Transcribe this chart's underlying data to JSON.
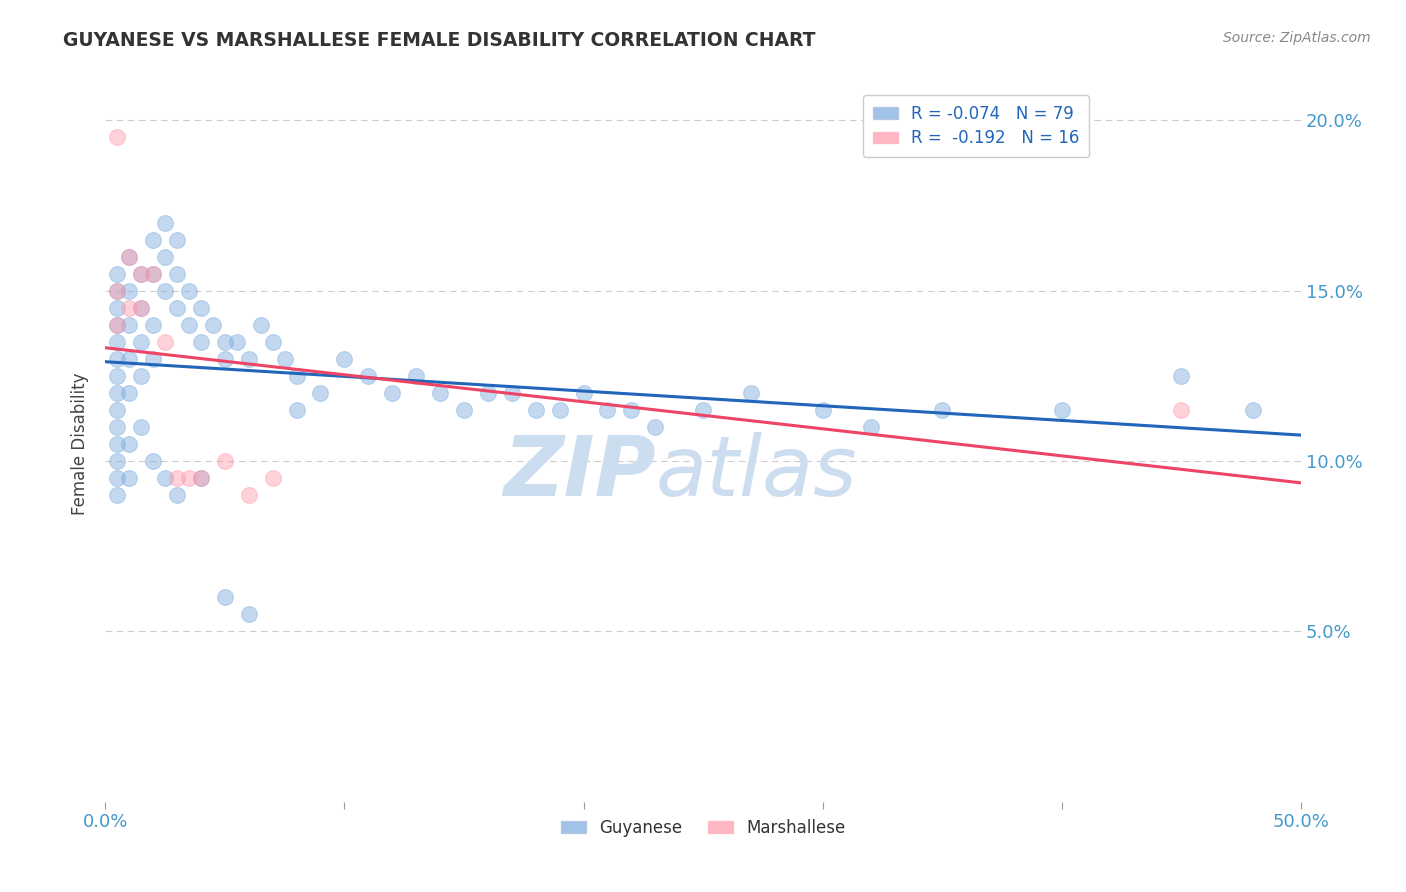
{
  "title": "GUYANESE VS MARSHALLESE FEMALE DISABILITY CORRELATION CHART",
  "source": "Source: ZipAtlas.com",
  "ylabel": "Female Disability",
  "legend_r_blue": "R = -0.074",
  "legend_n_blue": "N = 79",
  "legend_r_pink": "R =  -0.192",
  "legend_n_pink": "N = 16",
  "blue_color": "#7aaadd",
  "pink_color": "#ff99aa",
  "trend_blue": "#2266bb",
  "trend_pink": "#ee4466",
  "dashed_color": "#7aaadd",
  "background_color": "#ffffff",
  "grid_color": "#cccccc",
  "watermark_color": "#ccddf0",
  "guyanese_x": [
    0.5,
    0.5,
    0.5,
    0.5,
    0.5,
    0.5,
    0.5,
    0.5,
    0.5,
    0.5,
    1.0,
    1.0,
    1.0,
    1.0,
    1.0,
    1.5,
    1.5,
    1.5,
    1.5,
    2.0,
    2.0,
    2.0,
    2.0,
    2.5,
    2.5,
    2.5,
    3.0,
    3.0,
    3.0,
    3.5,
    3.5,
    4.0,
    4.0,
    4.5,
    5.0,
    5.0,
    5.5,
    6.0,
    6.5,
    7.0,
    7.5,
    8.0,
    9.0,
    10.0,
    11.0,
    12.0,
    13.0,
    14.0,
    15.0,
    16.0,
    17.0,
    18.0,
    19.0,
    20.0,
    21.0,
    22.0,
    23.0,
    25.0,
    27.0,
    30.0,
    32.0,
    35.0,
    40.0,
    45.0,
    48.0,
    0.5,
    0.5,
    0.5,
    0.5,
    1.0,
    1.0,
    1.5,
    2.0,
    2.5,
    3.0,
    4.0,
    5.0,
    6.0,
    8.0
  ],
  "guyanese_y": [
    12.5,
    13.0,
    13.5,
    14.0,
    14.5,
    15.0,
    15.5,
    12.0,
    11.5,
    11.0,
    13.0,
    14.0,
    15.0,
    16.0,
    12.0,
    15.5,
    14.5,
    13.5,
    12.5,
    16.5,
    15.5,
    14.0,
    13.0,
    17.0,
    16.0,
    15.0,
    16.5,
    15.5,
    14.5,
    15.0,
    14.0,
    14.5,
    13.5,
    14.0,
    13.5,
    13.0,
    13.5,
    13.0,
    14.0,
    13.5,
    13.0,
    12.5,
    12.0,
    13.0,
    12.5,
    12.0,
    12.5,
    12.0,
    11.5,
    12.0,
    12.0,
    11.5,
    11.5,
    12.0,
    11.5,
    11.5,
    11.0,
    11.5,
    12.0,
    11.5,
    11.0,
    11.5,
    11.5,
    12.5,
    11.5,
    9.5,
    10.0,
    10.5,
    9.0,
    10.5,
    9.5,
    11.0,
    10.0,
    9.5,
    9.0,
    9.5,
    6.0,
    5.5,
    11.5
  ],
  "marshallese_x": [
    0.5,
    0.5,
    0.5,
    1.0,
    1.0,
    1.5,
    1.5,
    2.0,
    2.5,
    3.0,
    3.5,
    4.0,
    5.0,
    6.0,
    7.0,
    45.0
  ],
  "marshallese_y": [
    19.5,
    15.0,
    14.0,
    16.0,
    14.5,
    15.5,
    14.5,
    15.5,
    13.5,
    9.5,
    9.5,
    9.5,
    10.0,
    9.0,
    9.5,
    11.5
  ],
  "xlim": [
    0.0,
    50.0
  ],
  "ylim": [
    0.0,
    21.0
  ],
  "x_ticks": [
    0.0,
    10.0,
    20.0,
    30.0,
    40.0,
    50.0
  ],
  "x_tick_labels": [
    "0.0%",
    "",
    "",
    "",
    "",
    "50.0%"
  ],
  "y_ticks": [
    0.0,
    5.0,
    10.0,
    15.0,
    20.0
  ],
  "y_tick_labels": [
    "",
    "5.0%",
    "10.0%",
    "15.0%",
    "20.0%"
  ]
}
